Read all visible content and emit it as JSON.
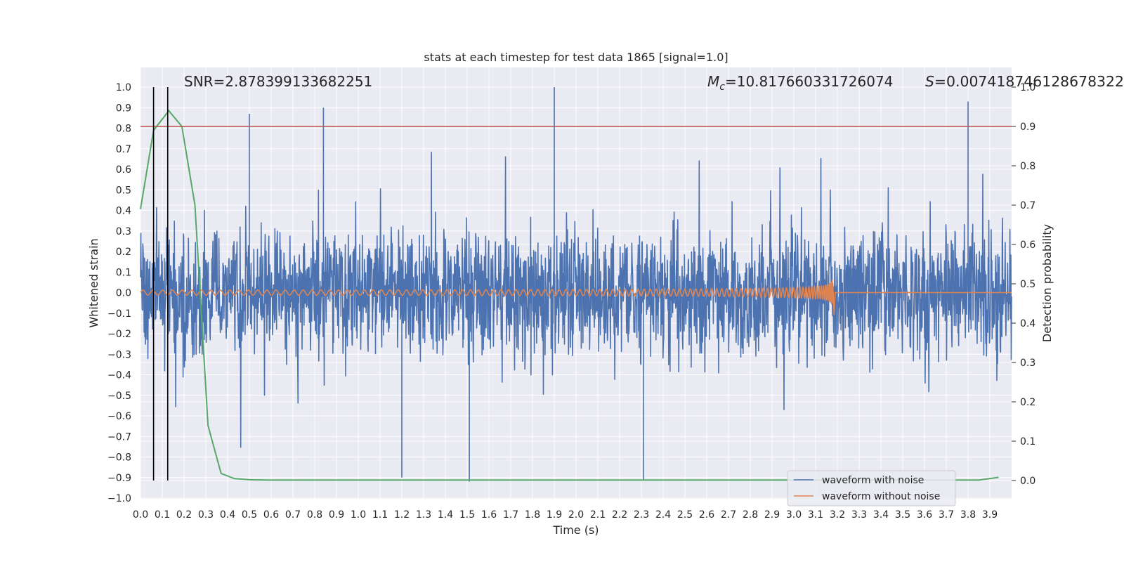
{
  "chart_data": {
    "type": "line",
    "title": "stats at each timestep for test data 1865 [signal=1.0]",
    "xlabel": "Time (s)",
    "ylabel": "Whitened strain",
    "y2label": "Detection probability",
    "xlim": [
      0.0,
      4.0
    ],
    "ylim": [
      -1.0,
      1.0
    ],
    "y2lim": [
      -0.05,
      1.0
    ],
    "x_ticks": [
      "0.0",
      "0.1",
      "0.2",
      "0.3",
      "0.4",
      "0.5",
      "0.6",
      "0.7",
      "0.8",
      "0.9",
      "1.0",
      "1.1",
      "1.2",
      "1.3",
      "1.4",
      "1.5",
      "1.6",
      "1.7",
      "1.8",
      "1.9",
      "2.0",
      "2.1",
      "2.2",
      "2.3",
      "2.4",
      "2.5",
      "2.6",
      "2.7",
      "2.8",
      "2.9",
      "3.0",
      "3.1",
      "3.2",
      "3.3",
      "3.4",
      "3.5",
      "3.6",
      "3.7",
      "3.8",
      "3.9"
    ],
    "y_ticks": [
      "1.0",
      "0.9",
      "0.8",
      "0.7",
      "0.6",
      "0.5",
      "0.4",
      "0.3",
      "0.2",
      "0.1",
      "0.0",
      "−0.1",
      "−0.2",
      "−0.3",
      "−0.4",
      "−0.5",
      "−0.6",
      "−0.7",
      "−0.8",
      "−0.9",
      "−1.0"
    ],
    "y2_ticks": [
      "1.0",
      "0.9",
      "0.8",
      "0.7",
      "0.6",
      "0.5",
      "0.4",
      "0.3",
      "0.2",
      "0.1",
      "0.0"
    ],
    "annotations": {
      "snr": "SNR=2.878399133682251",
      "mc_symbol": "M",
      "mc_sub": "c",
      "mc_value": "=10.817660331726074",
      "s_symbol": "S",
      "s_value": "=0.007418746128678322"
    },
    "legend_placement": "lower-right",
    "grid": true,
    "series": [
      {
        "name": "waveform with noise",
        "color": "#4c72b0",
        "description": "whitened noisy strain, roughly within [-0.9, 1.0]",
        "typical_amplitude": 0.3,
        "peak_examples": [
          {
            "x": 1.9,
            "y": 1.0
          },
          {
            "x": 3.8,
            "y": 0.93
          },
          {
            "x": 0.84,
            "y": 0.9
          },
          {
            "x": 0.5,
            "y": 0.87
          },
          {
            "x": 1.51,
            "y": -0.92
          },
          {
            "x": 2.31,
            "y": -0.91
          },
          {
            "x": 1.2,
            "y": -0.9
          }
        ]
      },
      {
        "name": "waveform without noise",
        "color": "#dd8452",
        "description": "chirp signal merging near t=3.18 s",
        "merger_time": 3.18,
        "peak_amplitude": 0.13
      },
      {
        "name": "",
        "color": "#55a868",
        "axis": "right",
        "x": [
          0.0,
          0.06,
          0.13,
          0.19,
          0.25,
          0.31,
          0.37,
          0.43,
          0.5,
          0.6,
          1.0,
          2.0,
          3.0,
          3.85,
          3.94
        ],
        "y": [
          0.69,
          0.89,
          0.94,
          0.9,
          0.7,
          0.14,
          0.018,
          0.005,
          0.002,
          0.001,
          0.001,
          0.001,
          0.001,
          0.001,
          0.008
        ]
      }
    ],
    "threshold_line": {
      "axis": "right",
      "value": 0.9,
      "color": "#c44e52"
    },
    "vertical_markers": {
      "x": [
        0.06,
        0.125
      ],
      "y_from": 0.0,
      "y_to": 1.0,
      "axis": "right",
      "color": "#000000"
    },
    "legend": [
      {
        "label": "waveform with noise",
        "color": "#4c72b0"
      },
      {
        "label": "waveform without noise",
        "color": "#dd8452"
      }
    ]
  }
}
